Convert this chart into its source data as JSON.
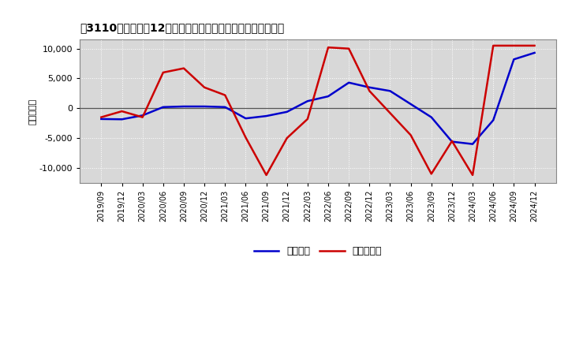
{
  "ylabel": "（百万円）",
  "x_labels": [
    "2019/09",
    "2019/12",
    "2020/03",
    "2020/06",
    "2020/09",
    "2020/12",
    "2021/03",
    "2021/06",
    "2021/09",
    "2021/12",
    "2022/03",
    "2022/06",
    "2022/09",
    "2022/12",
    "2023/03",
    "2023/06",
    "2023/09",
    "2023/12",
    "2024/03",
    "2024/06",
    "2024/09",
    "2024/12"
  ],
  "keijo_rieki": [
    -1800,
    -1850,
    -1200,
    200,
    300,
    300,
    200,
    -1700,
    -1300,
    -600,
    1200,
    2000,
    4300,
    3500,
    2900,
    700,
    -1500,
    -5600,
    -6000,
    -2000,
    8200,
    9300
  ],
  "touki_jun_rieki": [
    -1500,
    -500,
    -1500,
    6000,
    6700,
    3500,
    2200,
    -4900,
    -11200,
    -5000,
    -1800,
    10200,
    10000,
    2900,
    -800,
    -4500,
    -11000,
    -5500,
    -11200,
    10500,
    10500,
    10500
  ],
  "line_color_keijo": "#0000cc",
  "line_color_touki": "#cc0000",
  "bg_color": "#ffffff",
  "plot_bg_color": "#d8d8d8",
  "grid_color": "#ffffff",
  "zero_line_color": "#555555",
  "ylim": [
    -12500,
    11500
  ],
  "yticks": [
    -10000,
    -5000,
    0,
    5000,
    10000
  ],
  "legend_keijo": "経常利益",
  "legend_touki": "当期純利益"
}
